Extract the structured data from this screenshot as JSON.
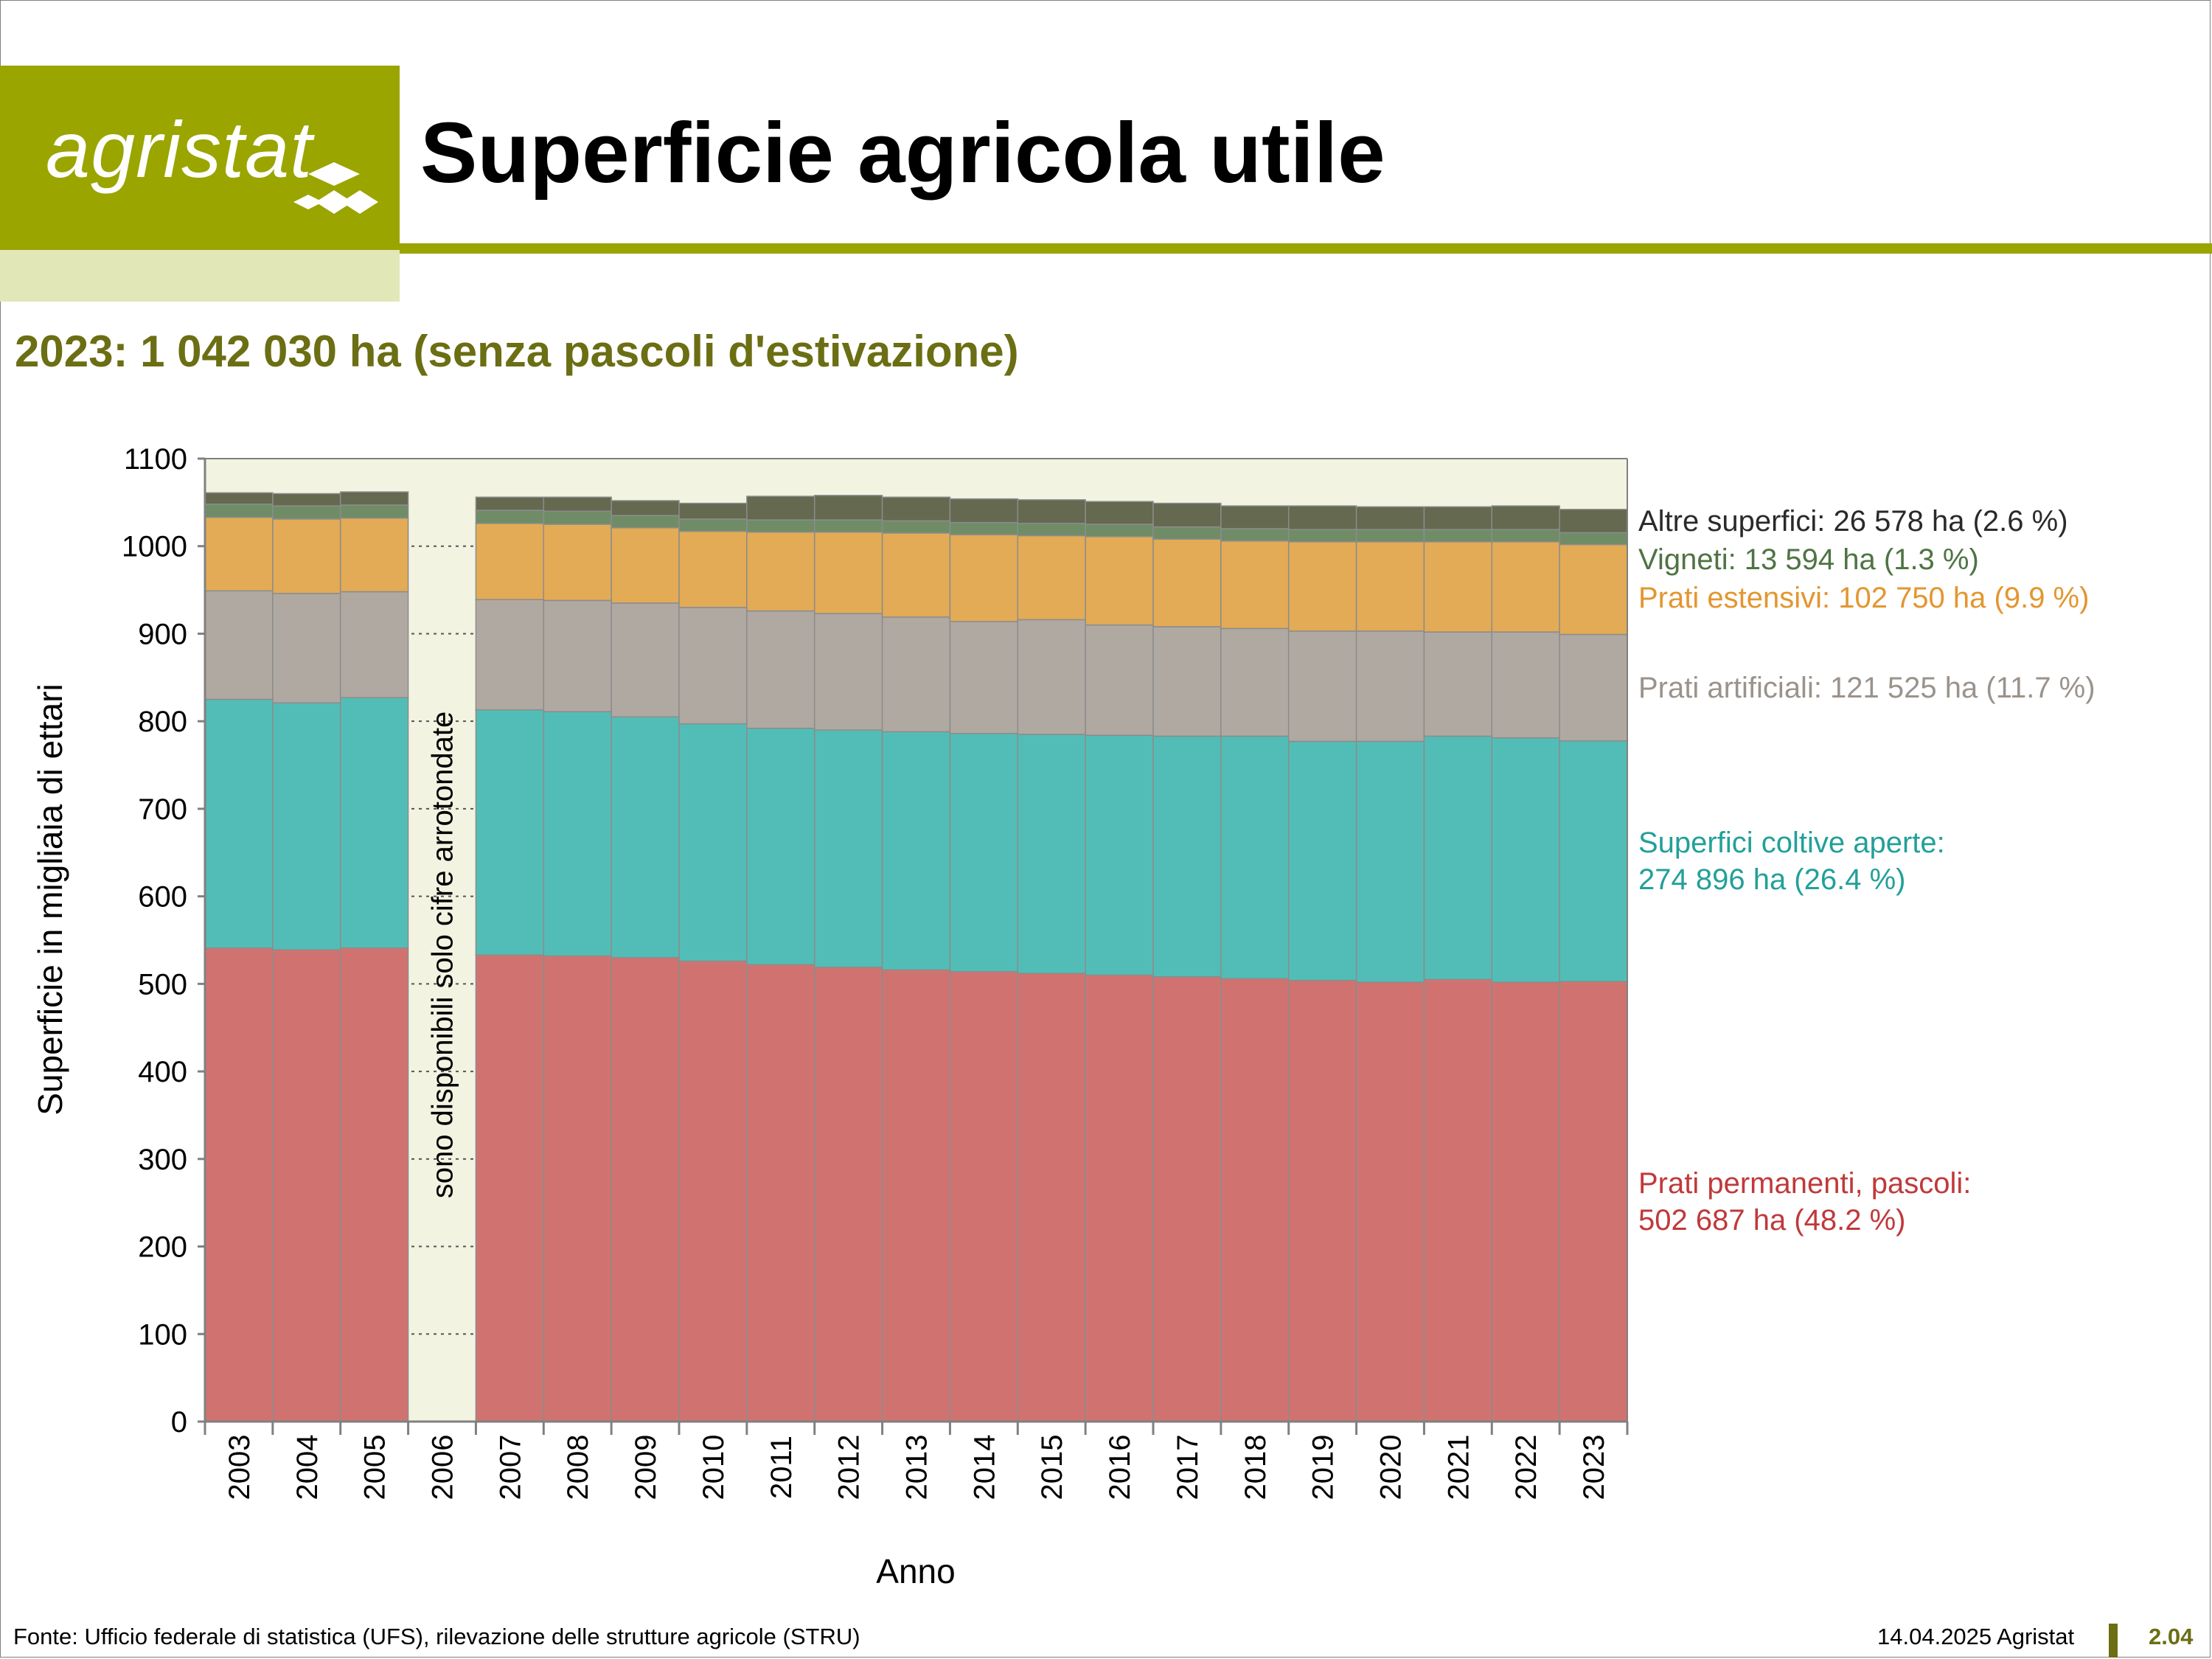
{
  "header": {
    "logo_text": "agristat",
    "title": "Superficie agricola utile",
    "subtitle": "2023: 1 042 030 ha (senza pascoli d'estivazione)"
  },
  "footer": {
    "source": "Fonte: Ufficio federale di statistica (UFS), rilevazione delle strutture agricole (STRU)",
    "date": "14.04.2025 Agristat",
    "page": "2.04"
  },
  "colors": {
    "brand_green": "#9aa500",
    "brand_light": "#e2e7b8",
    "subtitle": "#6b6e13",
    "plot_bg": "#f3f3e2"
  },
  "chart_data": {
    "type": "bar",
    "stacked": true,
    "title": "Superficie agricola utile",
    "xlabel": "Anno",
    "ylabel": "Superficie in migliaia di ettari",
    "ylim": [
      0,
      1100
    ],
    "yticks": [
      0,
      100,
      200,
      300,
      400,
      500,
      600,
      700,
      800,
      900,
      1000,
      1100
    ],
    "grid": "horizontal dashed",
    "legend": "right, labels beside the 2023 bar",
    "note": "sono disponibili solo cifre arrotondate",
    "note_category": "2006",
    "categories": [
      "2003",
      "2004",
      "2005",
      "2006",
      "2007",
      "2008",
      "2009",
      "2010",
      "2011",
      "2012",
      "2013",
      "2014",
      "2015",
      "2016",
      "2017",
      "2018",
      "2019",
      "2020",
      "2021",
      "2022",
      "2023"
    ],
    "series": [
      {
        "name": "Prati permanenti, pascoli",
        "color": "#d07370",
        "label_color": "#c0393b",
        "label_lines": [
          "Prati permanenti, pascoli:",
          "502 687 ha (48.2 %)"
        ],
        "values": [
          541,
          539,
          541,
          null,
          533,
          532,
          530,
          526,
          522,
          519,
          516,
          514,
          512,
          510,
          508,
          506,
          504,
          502,
          505,
          502,
          502.687
        ]
      },
      {
        "name": "Superfici coltive aperte",
        "color": "#52bdb6",
        "label_color": "#22a09a",
        "label_lines": [
          "Superfici coltive aperte:",
          "274 896 ha (26.4 %)"
        ],
        "values": [
          284,
          282,
          286,
          null,
          280,
          279,
          275,
          271,
          270,
          271,
          272,
          272,
          273,
          274,
          275,
          277,
          273,
          275,
          278,
          279,
          274.896
        ]
      },
      {
        "name": "Prati artificiali",
        "color": "#b0a9a1",
        "label_color": "#9a938c",
        "label_lines": [
          "Prati artificiali: 121 525 ha (11.7 %)"
        ],
        "values": [
          124,
          125,
          121,
          null,
          126,
          127,
          130,
          133,
          134,
          133,
          131,
          128,
          131,
          126,
          125,
          123,
          126,
          126,
          119,
          121,
          121.525
        ]
      },
      {
        "name": "Prati estensivi",
        "color": "#e3ab55",
        "label_color": "#e3962f",
        "label_lines": [
          "Prati estensivi: 102 750 ha (9.9 %)"
        ],
        "values": [
          84,
          85,
          84,
          null,
          87,
          87,
          86,
          87,
          90,
          93,
          96,
          99,
          96,
          101,
          100,
          100,
          102,
          102,
          103,
          103,
          102.75
        ]
      },
      {
        "name": "Vigneti",
        "color": "#6f8c67",
        "label_color": "#4e7443",
        "label_lines": [
          "Vigneti: 13 594 ha (1.3 %)"
        ],
        "values": [
          15,
          15,
          15,
          null,
          15,
          15,
          14,
          14,
          14,
          14,
          14,
          14,
          14,
          14,
          14,
          14,
          14,
          14,
          14,
          14,
          13.594
        ]
      },
      {
        "name": "Altre superfici",
        "color": "#646950",
        "label_color": "#2a2a2a",
        "label_lines": [
          "Altre superfici: 26 578 ha (2.6 %)"
        ],
        "values": [
          13,
          14,
          15,
          null,
          15,
          16,
          17,
          18,
          27,
          28,
          27,
          27,
          27,
          26,
          27,
          26,
          27,
          26,
          26,
          27,
          26.578
        ]
      }
    ]
  }
}
